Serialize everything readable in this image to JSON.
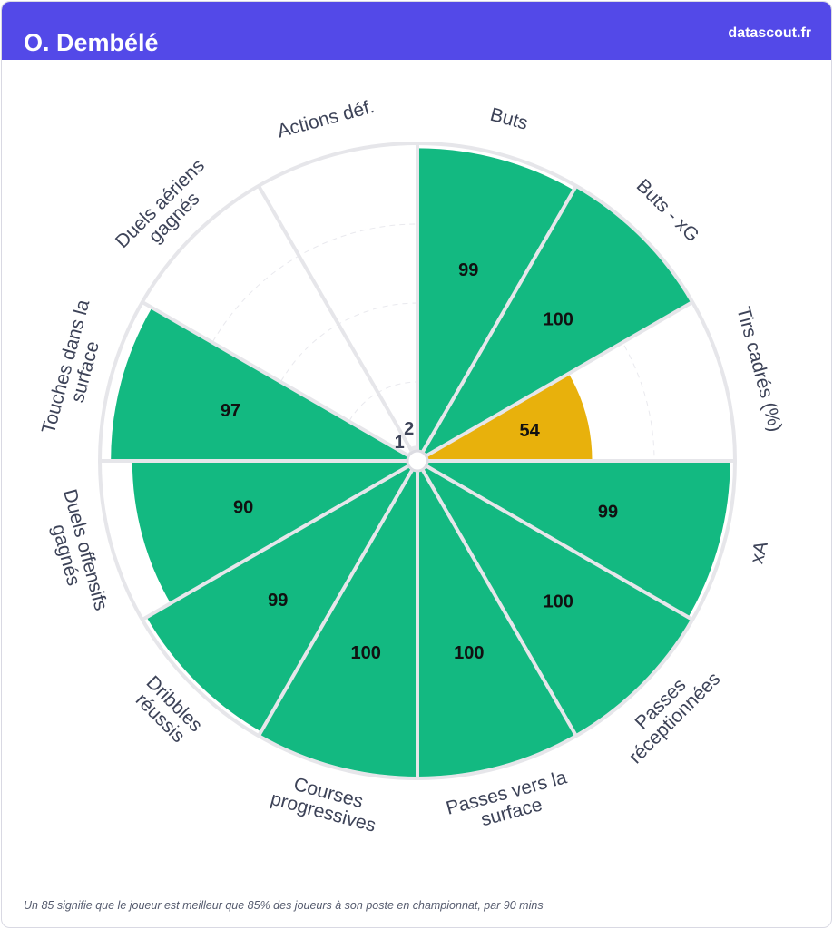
{
  "header": {
    "title": "O. Dembélé",
    "brand": "datascout.fr"
  },
  "footnote": "Un 85 signifie que le joueur est meilleur que 85% des joueurs à son poste en championnat, par 90 mins",
  "colors": {
    "header": "#5349e8",
    "high": "#13b981",
    "mid": "#e8b10c",
    "label": "#3d4358"
  },
  "chart_data": {
    "type": "polar-bar",
    "title": "",
    "categories": [
      "Buts",
      "Buts - xG",
      "Tirs cadrés (%)",
      "xA",
      "Passes réceptionnées",
      "Passes vers la surface",
      "Courses progressives",
      "Dribbles réussis",
      "Duels offensifs gagnés",
      "Touches dans la surface",
      "Duels aériens gagnés",
      "Actions déf."
    ],
    "label_lines": [
      [
        "Buts"
      ],
      [
        "Buts - xG"
      ],
      [
        "Tirs cadrés (%)"
      ],
      [
        "xA"
      ],
      [
        "Passes",
        "réceptionnées"
      ],
      [
        "Passes vers la",
        "surface"
      ],
      [
        "Courses",
        "progressives"
      ],
      [
        "Dribbles",
        "réussis"
      ],
      [
        "Duels offensifs",
        "gagnés"
      ],
      [
        "Touches dans la",
        "surface"
      ],
      [
        "Duels aériens",
        "gagnés"
      ],
      [
        "Actions déf."
      ]
    ],
    "values": [
      99,
      100,
      54,
      99,
      100,
      100,
      100,
      99,
      90,
      97,
      1,
      2
    ],
    "rlim": [
      0,
      100
    ],
    "grid": true
  }
}
